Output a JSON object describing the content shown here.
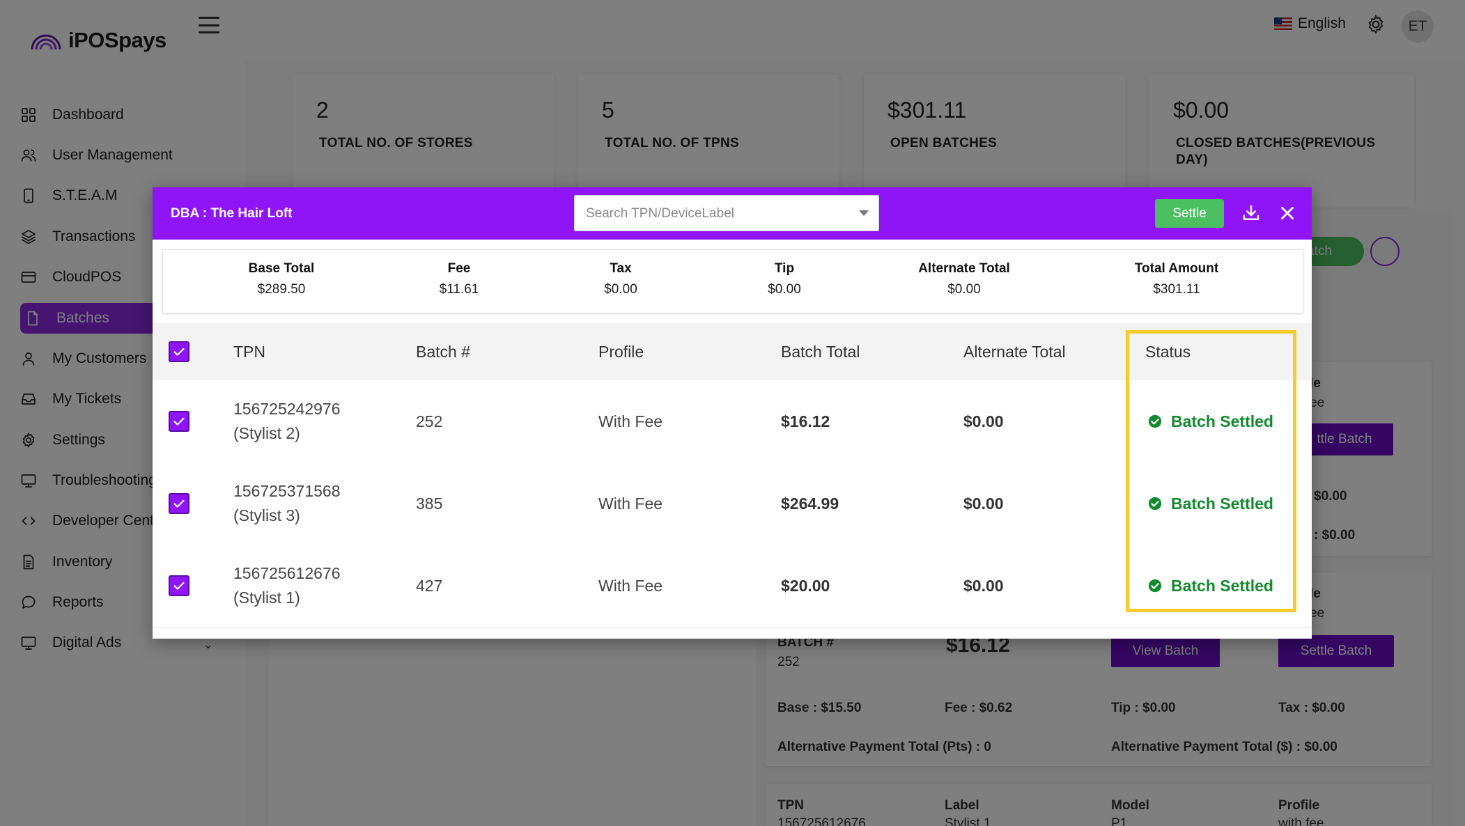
{
  "brand": {
    "name": "iPOSpays"
  },
  "header": {
    "language": "English",
    "avatar_initials": "ET"
  },
  "sidebar": {
    "items": [
      {
        "label": "Dashboard",
        "icon": "grid-icon"
      },
      {
        "label": "User Management",
        "icon": "users-icon"
      },
      {
        "label": "S.T.E.A.M",
        "icon": "device-icon"
      },
      {
        "label": "Transactions",
        "icon": "layers-icon"
      },
      {
        "label": "CloudPOS",
        "icon": "card-icon"
      },
      {
        "label": "Batches",
        "icon": "document-icon",
        "active": true
      },
      {
        "label": "My Customers",
        "icon": "user-icon"
      },
      {
        "label": "My Tickets",
        "icon": "inbox-icon"
      },
      {
        "label": "Settings",
        "icon": "gear-icon"
      },
      {
        "label": "Troubleshooting",
        "icon": "monitor-icon"
      },
      {
        "label": "Developer Center",
        "icon": "code-icon"
      },
      {
        "label": "Inventory",
        "icon": "file-icon"
      },
      {
        "label": "Reports",
        "icon": "chat-icon"
      },
      {
        "label": "Digital Ads",
        "icon": "monitor-icon"
      }
    ]
  },
  "stats": [
    {
      "value": "2",
      "label": "TOTAL NO. OF STORES"
    },
    {
      "value": "5",
      "label": "TOTAL NO. OF TPNS"
    },
    {
      "value": "$301.11",
      "label": "OPEN BATCHES"
    },
    {
      "value": "$0.00",
      "label": "CLOSED BATCHES(PREVIOUS DAY)"
    }
  ],
  "background": {
    "batch_button_partial": "atch",
    "card1": {
      "profile_partial": "le",
      "fee_partial": "ee",
      "settle_partial": "ttle Batch",
      "amount1": "$0.00",
      "amount2": ": $0.00"
    },
    "card2": {
      "profile_partial": "le",
      "fee_partial": "ee",
      "batch_label": "BATCH #",
      "batch_number": "252",
      "batch_total": "$16.12",
      "view_button": "View Batch",
      "settle_button": "Settle Batch",
      "base": "Base : $15.50",
      "fee": "Fee : $0.62",
      "tip": "Tip   : $0.00",
      "tax": "Tax : $0.00",
      "alt_pts": "Alternative Payment Total (Pts) : 0",
      "alt_usd": "Alternative Payment Total ($) : $0.00"
    },
    "card3": {
      "col_tpn": "TPN",
      "col_label": "Label",
      "col_model": "Model",
      "col_profile": "Profile",
      "tpn_partial": "156725612676",
      "label_partial": "Stylist 1",
      "model_partial": "P1",
      "profile_partial": "with fee"
    }
  },
  "modal": {
    "title": "DBA : The Hair Loft",
    "search_placeholder": "Search TPN/DeviceLabel",
    "settle_label": "Settle",
    "totals": [
      {
        "label": "Base Total",
        "value": "$289.50"
      },
      {
        "label": "Fee",
        "value": "$11.61"
      },
      {
        "label": "Tax",
        "value": "$0.00"
      },
      {
        "label": "Tip",
        "value": "$0.00"
      },
      {
        "label": "Alternate Total",
        "value": "$0.00"
      },
      {
        "label": "Total Amount",
        "value": "$301.11"
      }
    ],
    "columns": [
      "TPN",
      "Batch #",
      "Profile",
      "Batch Total",
      "Alternate Total",
      "Status"
    ],
    "rows": [
      {
        "tpn": "156725242976",
        "device": "(Stylist 2)",
        "batch": "252",
        "profile": "With Fee",
        "batch_total": "$16.12",
        "alternate_total": "$0.00",
        "status": "Batch Settled"
      },
      {
        "tpn": "156725371568",
        "device": "(Stylist 3)",
        "batch": "385",
        "profile": "With Fee",
        "batch_total": "$264.99",
        "alternate_total": "$0.00",
        "status": "Batch Settled"
      },
      {
        "tpn": "156725612676",
        "device": "(Stylist 1)",
        "batch": "427",
        "profile": "With Fee",
        "batch_total": "$20.00",
        "alternate_total": "$0.00",
        "status": "Batch Settled"
      }
    ]
  },
  "colors": {
    "accent": "#8f15f7",
    "settle_green": "#4cbf60",
    "status_green": "#138a2e",
    "highlight": "#f5cc2b"
  }
}
